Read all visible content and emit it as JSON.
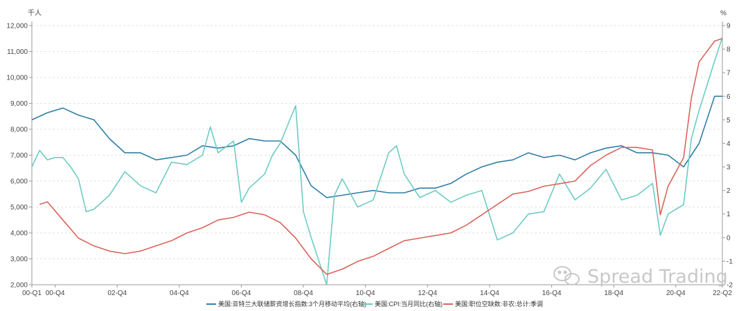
{
  "chart_data": {
    "type": "line",
    "y_left": {
      "unit": "千人",
      "min": 2000,
      "max": 12000,
      "step": 1000,
      "ticks": [
        "2,000",
        "3,000",
        "4,000",
        "5,000",
        "6,000",
        "7,000",
        "8,000",
        "9,000",
        "10,000",
        "11,000",
        "12,000"
      ]
    },
    "y_right": {
      "unit": "%",
      "min": -2,
      "max": 9,
      "step": 1,
      "ticks": [
        "-2",
        "-1",
        "0",
        "1",
        "2",
        "3",
        "4",
        "5",
        "6",
        "7",
        "8",
        "9"
      ]
    },
    "x_ticks": [
      "00-Q1",
      "00-Q4",
      "02-Q4",
      "04-Q4",
      "06-Q4",
      "08-Q4",
      "10-Q4",
      "12-Q4",
      "14-Q4",
      "16-Q4",
      "18-Q4",
      "20-Q4",
      "22-Q2"
    ],
    "x_range": [
      2000.0,
      2022.25
    ],
    "grid": true,
    "legend_position": "bottom",
    "series": [
      {
        "name": "美国:亚特兰大联储薪资增长指数:3个月移动平均(右轴)",
        "axis": "right",
        "color": "#2f7ea6",
        "x": [
          2000.0,
          2000.5,
          2001.0,
          2001.5,
          2002.0,
          2002.5,
          2003.0,
          2003.5,
          2004.0,
          2004.5,
          2005.0,
          2005.5,
          2006.0,
          2006.5,
          2007.0,
          2007.5,
          2008.0,
          2008.5,
          2009.0,
          2009.5,
          2010.0,
          2010.5,
          2011.0,
          2011.5,
          2012.0,
          2012.5,
          2013.0,
          2013.5,
          2014.0,
          2014.5,
          2015.0,
          2015.5,
          2016.0,
          2016.5,
          2017.0,
          2017.5,
          2018.0,
          2018.5,
          2019.0,
          2019.5,
          2020.0,
          2020.5,
          2021.0,
          2021.5,
          2022.0,
          2022.25
        ],
        "values": [
          5.0,
          5.3,
          5.5,
          5.2,
          5.0,
          4.2,
          3.6,
          3.6,
          3.3,
          3.4,
          3.5,
          3.9,
          3.8,
          3.9,
          4.2,
          4.1,
          4.1,
          3.5,
          2.2,
          1.7,
          1.8,
          1.9,
          2.0,
          1.9,
          1.9,
          2.1,
          2.1,
          2.3,
          2.7,
          3.0,
          3.2,
          3.3,
          3.6,
          3.4,
          3.5,
          3.3,
          3.6,
          3.8,
          3.9,
          3.6,
          3.6,
          3.5,
          3.0,
          4.0,
          6.0,
          6.0
        ]
      },
      {
        "name": "美国:CPI:当月同比(右轴)",
        "axis": "right",
        "color": "#6ccbc4",
        "x": [
          2000.0,
          2000.25,
          2000.5,
          2000.75,
          2001.0,
          2001.25,
          2001.5,
          2001.75,
          2002.0,
          2002.5,
          2003.0,
          2003.5,
          2004.0,
          2004.5,
          2005.0,
          2005.5,
          2005.75,
          2006.0,
          2006.5,
          2006.75,
          2007.0,
          2007.5,
          2007.75,
          2008.0,
          2008.5,
          2008.75,
          2009.0,
          2009.5,
          2009.75,
          2010.0,
          2010.5,
          2011.0,
          2011.5,
          2011.75,
          2012.0,
          2012.5,
          2013.0,
          2013.5,
          2014.0,
          2014.5,
          2015.0,
          2015.5,
          2016.0,
          2016.5,
          2017.0,
          2017.5,
          2018.0,
          2018.5,
          2019.0,
          2019.5,
          2020.0,
          2020.25,
          2020.5,
          2021.0,
          2021.25,
          2021.5,
          2022.0,
          2022.25
        ],
        "values": [
          3.0,
          3.7,
          3.3,
          3.4,
          3.4,
          3.0,
          2.5,
          1.1,
          1.2,
          1.8,
          2.8,
          2.2,
          1.9,
          3.2,
          3.1,
          3.5,
          4.7,
          3.6,
          4.1,
          1.5,
          2.1,
          2.7,
          3.5,
          4.0,
          5.6,
          1.1,
          0.0,
          -2.0,
          1.8,
          2.5,
          1.3,
          1.6,
          3.6,
          3.9,
          2.7,
          1.7,
          2.0,
          1.5,
          1.8,
          2.0,
          -0.1,
          0.2,
          1.0,
          1.1,
          2.7,
          1.6,
          2.1,
          2.9,
          1.6,
          1.8,
          2.3,
          0.1,
          1.0,
          1.4,
          4.2,
          5.4,
          7.5,
          8.5
        ]
      },
      {
        "name": "美国:职位空缺数:非农:总计:季调",
        "axis": "left",
        "color": "#d9645a",
        "x": [
          2000.25,
          2000.5,
          2001.0,
          2001.5,
          2002.0,
          2002.5,
          2003.0,
          2003.5,
          2004.0,
          2004.5,
          2005.0,
          2005.5,
          2006.0,
          2006.5,
          2007.0,
          2007.5,
          2008.0,
          2008.5,
          2009.0,
          2009.5,
          2010.0,
          2010.5,
          2011.0,
          2011.5,
          2012.0,
          2012.5,
          2013.0,
          2013.5,
          2014.0,
          2014.5,
          2015.0,
          2015.5,
          2016.0,
          2016.5,
          2017.0,
          2017.5,
          2018.0,
          2018.5,
          2019.0,
          2019.5,
          2020.0,
          2020.25,
          2020.5,
          2021.0,
          2021.25,
          2021.5,
          2022.0,
          2022.25
        ],
        "values": [
          5100,
          5200,
          4500,
          3800,
          3500,
          3300,
          3200,
          3300,
          3500,
          3700,
          4000,
          4200,
          4500,
          4600,
          4800,
          4700,
          4400,
          3800,
          3000,
          2400,
          2600,
          2900,
          3100,
          3400,
          3700,
          3800,
          3900,
          4000,
          4300,
          4700,
          5100,
          5500,
          5600,
          5800,
          5900,
          6000,
          6600,
          7000,
          7300,
          7300,
          7200,
          4700,
          5800,
          6900,
          9200,
          10600,
          11400,
          11500
        ]
      }
    ]
  }
}
